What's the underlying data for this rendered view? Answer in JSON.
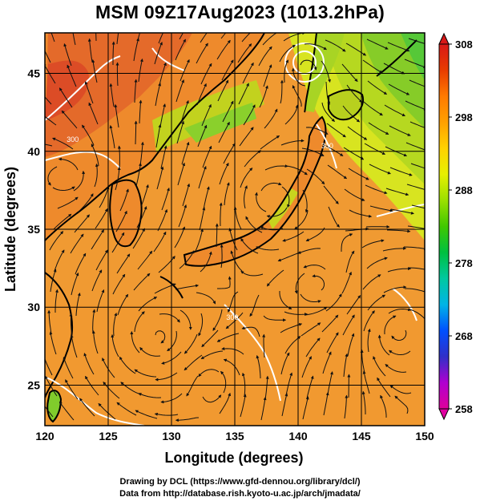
{
  "title": "MSM 09Z17Aug2023 (1013.2hPa)",
  "credits": {
    "line1": "Drawing by DCL (https://www.gfd-dennou.org/library/dcl/)",
    "line2": "Data from http://database.rish.kyoto-u.ac.jp/arch/jmadata/"
  },
  "map": {
    "xlabel": "Longitude (degrees)",
    "ylabel": "Latitude  (degrees)",
    "x_ticks": [
      120,
      125,
      130,
      135,
      140,
      145,
      150
    ],
    "y_ticks": [
      25,
      30,
      35,
      40,
      45
    ],
    "x_range": [
      120,
      150
    ],
    "y_range": [
      22.4,
      47.6
    ],
    "grid": true,
    "contour_labels": [
      {
        "text": "300",
        "lon": 122.2,
        "lat": 40.6
      },
      {
        "text": "300",
        "lon": 134.8,
        "lat": 29.2
      },
      {
        "text": "300",
        "lon": 142.3,
        "lat": 40.2
      }
    ]
  },
  "colorbar": {
    "ticks": [
      "308",
      "298",
      "288",
      "278",
      "268",
      "258"
    ],
    "range": [
      258,
      308
    ],
    "colors": [
      "#e0009a",
      "#b000d0",
      "#3030c8",
      "#0050ff",
      "#00b4e6",
      "#00c8a0",
      "#00c040",
      "#40c800",
      "#9be000",
      "#e6f000",
      "#ffd200",
      "#ffa000",
      "#ff7a00",
      "#e83c00",
      "#d81818"
    ]
  },
  "colors": {
    "ocean": "#f09a32",
    "land_warm": "#ee8a2c",
    "land_hot": "#e4622a",
    "land_cool": "#b8d01e",
    "land_cold": "#6fd230",
    "coast": "#000000",
    "contour": "#ffffff",
    "stream": "#111111"
  }
}
